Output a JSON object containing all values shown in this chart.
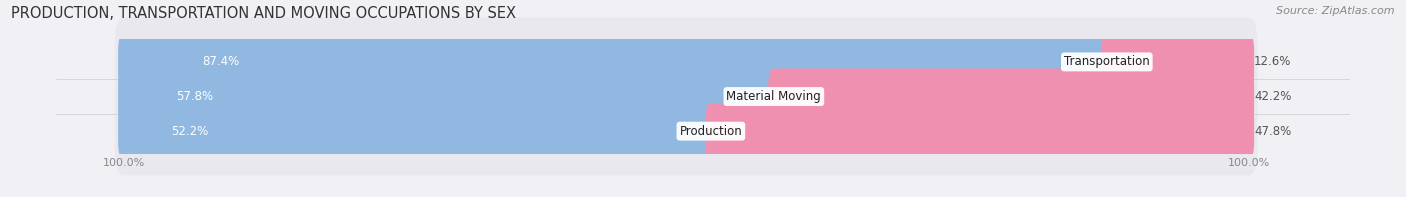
{
  "title": "PRODUCTION, TRANSPORTATION AND MOVING OCCUPATIONS BY SEX",
  "source": "Source: ZipAtlas.com",
  "categories": [
    "Transportation",
    "Material Moving",
    "Production"
  ],
  "male_values": [
    87.4,
    57.8,
    52.2
  ],
  "female_values": [
    12.6,
    42.2,
    47.8
  ],
  "male_color": "#90b8e0",
  "female_color": "#f090b0",
  "row_bg_color": "#e8e8ee",
  "background_color": "#f0f0f5",
  "title_fontsize": 10.5,
  "source_fontsize": 8,
  "label_fontsize": 8.5,
  "category_fontsize": 8.5,
  "legend_fontsize": 8.5,
  "bar_height": 0.62
}
